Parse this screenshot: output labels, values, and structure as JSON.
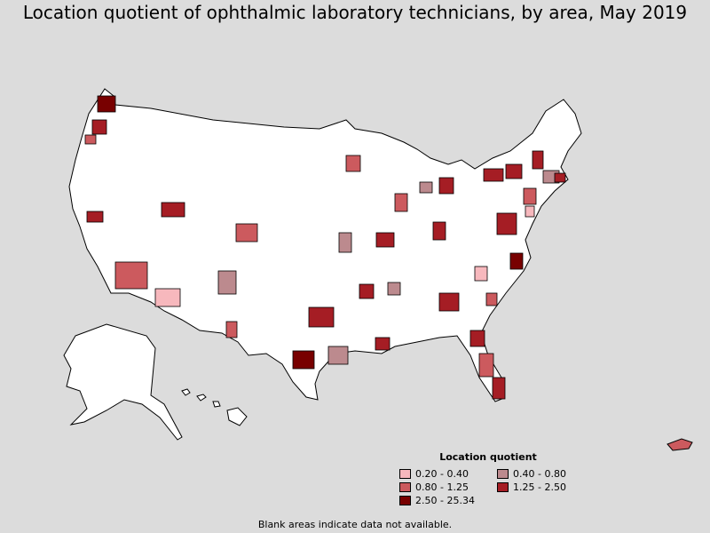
{
  "title": "Location quotient of ophthalmic laboratory technicians, by area, May 2019",
  "legend": {
    "title": "Location quotient",
    "items": [
      {
        "label": "0.20 - 0.40",
        "color": "#f7b8bd"
      },
      {
        "label": "0.40 - 0.80",
        "color": "#bc8a8e"
      },
      {
        "label": "0.80 - 1.25",
        "color": "#cc5a5e"
      },
      {
        "label": "1.25 - 2.50",
        "color": "#a51d24"
      },
      {
        "label": "2.50 - 25.34",
        "color": "#780000"
      }
    ]
  },
  "note": "Blank areas indicate data not available.",
  "colors": {
    "background": "#dcdcdc",
    "land": "#ffffff",
    "border": "#000000"
  }
}
